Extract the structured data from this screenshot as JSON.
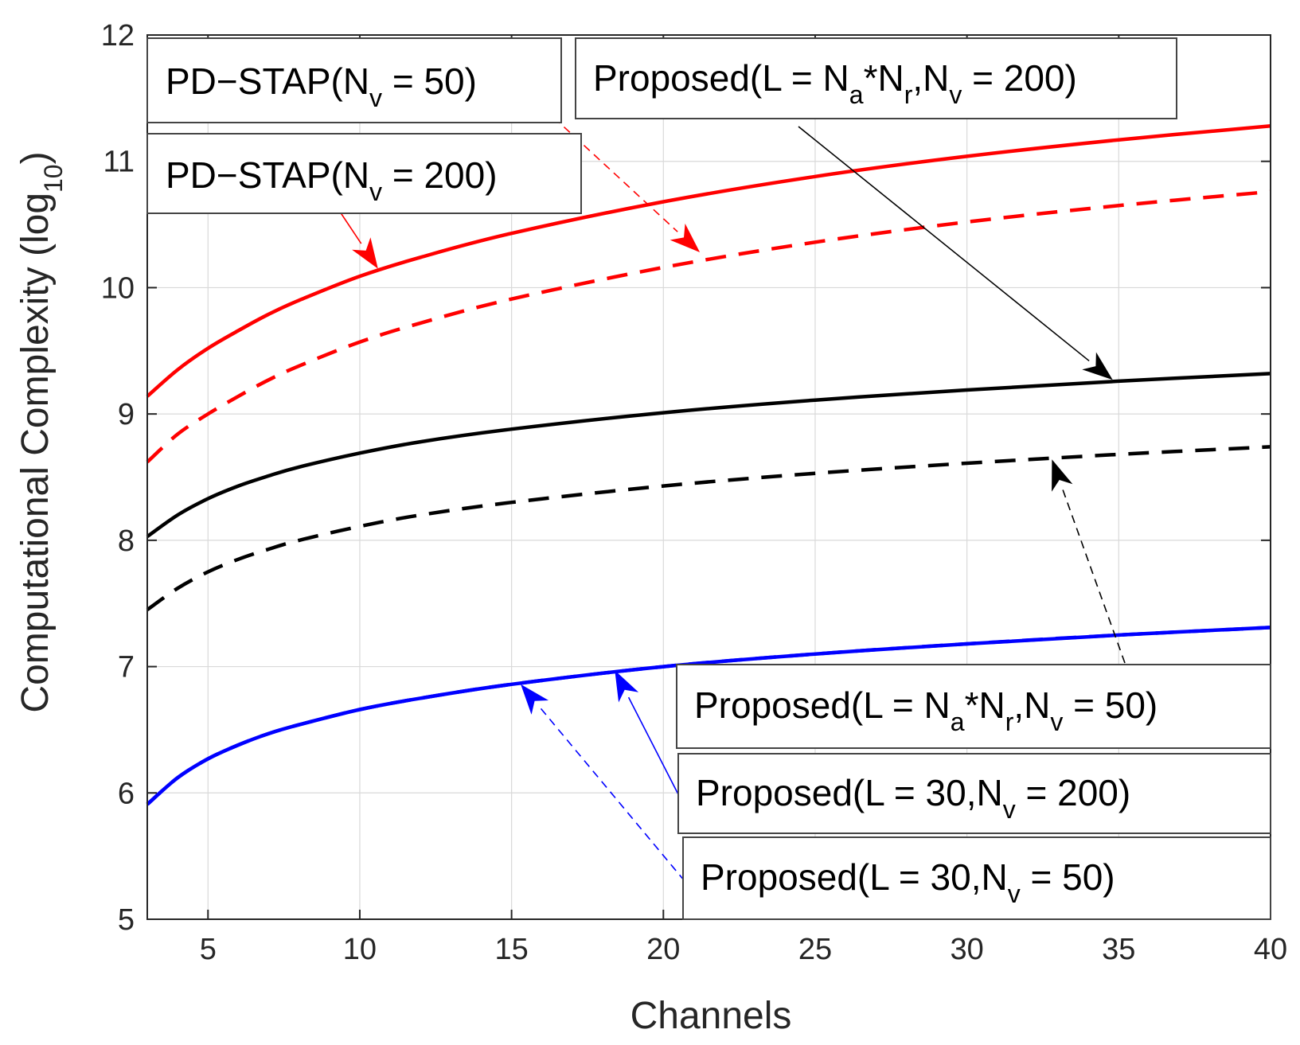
{
  "chart_data": {
    "type": "line",
    "title": "",
    "xlabel": "Channels",
    "ylabel": "Computational Complexity (log",
    "ylabel_sub": "10",
    "ylabel_suffix": ")",
    "xlim": [
      3,
      40
    ],
    "ylim": [
      5,
      12
    ],
    "xticks": [
      5,
      10,
      15,
      20,
      25,
      30,
      35,
      40
    ],
    "yticks": [
      5,
      6,
      7,
      8,
      9,
      10,
      11,
      12
    ],
    "grid": true,
    "x": [
      3,
      4,
      5,
      6,
      7,
      8,
      10,
      12,
      15,
      20,
      25,
      30,
      35,
      40
    ],
    "series": [
      {
        "name": "PD-STAP(Nv = 200)",
        "color": "#ff0000",
        "dash": "solid",
        "values": [
          9.14,
          9.35,
          9.52,
          9.66,
          9.79,
          9.9,
          10.09,
          10.24,
          10.43,
          10.68,
          10.88,
          11.04,
          11.17,
          11.28
        ]
      },
      {
        "name": "PD-STAP(Nv = 50)",
        "color": "#ff0000",
        "dash": "dashed",
        "values": [
          8.62,
          8.84,
          9.0,
          9.14,
          9.27,
          9.38,
          9.57,
          9.72,
          9.91,
          10.16,
          10.36,
          10.52,
          10.65,
          10.76
        ]
      },
      {
        "name": "Proposed(L = Na*Nr,Nv = 200)",
        "color": "#000000",
        "dash": "solid",
        "values": [
          8.03,
          8.2,
          8.33,
          8.43,
          8.51,
          8.58,
          8.69,
          8.78,
          8.88,
          9.01,
          9.11,
          9.19,
          9.26,
          9.32
        ]
      },
      {
        "name": "Proposed(L = Na*Nr,Nv = 50)",
        "color": "#000000",
        "dash": "dashed",
        "values": [
          7.45,
          7.62,
          7.75,
          7.85,
          7.93,
          8.0,
          8.11,
          8.2,
          8.3,
          8.43,
          8.53,
          8.61,
          8.68,
          8.74
        ]
      },
      {
        "name": "Proposed(L = 30,Nv = 200)",
        "color": "#0000ff",
        "dash": "solid",
        "values": [
          5.91,
          6.12,
          6.27,
          6.38,
          6.47,
          6.54,
          6.66,
          6.75,
          6.86,
          7.0,
          7.1,
          7.18,
          7.25,
          7.31
        ]
      },
      {
        "name": "Proposed(L = 30,Nv = 50)",
        "color": "#0000ff",
        "dash": "dashed",
        "values": [
          5.91,
          6.12,
          6.27,
          6.38,
          6.47,
          6.54,
          6.66,
          6.75,
          6.86,
          7.0,
          7.1,
          7.18,
          7.25,
          7.31
        ]
      }
    ],
    "annotations": [
      {
        "id": "pd50",
        "pre": "PD−STAP(N",
        "sub1": "v",
        "mid": " = 50)",
        "sub2": "",
        "post": "",
        "sub3": "",
        "end": "",
        "color": "#ff0000",
        "dash": "dashed",
        "target": [
          21.2,
          10.28
        ]
      },
      {
        "id": "pd200",
        "pre": "PD−STAP(N",
        "sub1": "v",
        "mid": " = 200)",
        "sub2": "",
        "post": "",
        "sub3": "",
        "end": "",
        "color": "#ff0000",
        "dash": "solid",
        "target": [
          10.6,
          10.15
        ]
      },
      {
        "id": "prop200",
        "pre": "Proposed(L = N",
        "sub1": "a",
        "mid": "*N",
        "sub2": "r",
        "post": ",N",
        "sub3": "v",
        "end": " = 200)",
        "color": "#000000",
        "dash": "solid",
        "target": [
          34.8,
          9.27
        ]
      },
      {
        "id": "prop50",
        "pre": "Proposed(L = N",
        "sub1": "a",
        "mid": "*N",
        "sub2": "r",
        "post": ",N",
        "sub3": "v",
        "end": " = 50)",
        "color": "#000000",
        "dash": "dashed",
        "target": [
          32.8,
          8.64
        ]
      },
      {
        "id": "l30-200",
        "pre": "Proposed(L = 30,N",
        "sub1": "v",
        "mid": " = 200)",
        "sub2": "",
        "post": "",
        "sub3": "",
        "end": "",
        "color": "#0000ff",
        "dash": "solid",
        "target": [
          18.4,
          6.97
        ]
      },
      {
        "id": "l30-50",
        "pre": "Proposed(L = 30,N",
        "sub1": "v",
        "mid": " = 50)",
        "sub2": "",
        "post": "",
        "sub3": "",
        "end": "",
        "color": "#0000ff",
        "dash": "dashed",
        "target": [
          15.3,
          6.86
        ]
      }
    ]
  }
}
